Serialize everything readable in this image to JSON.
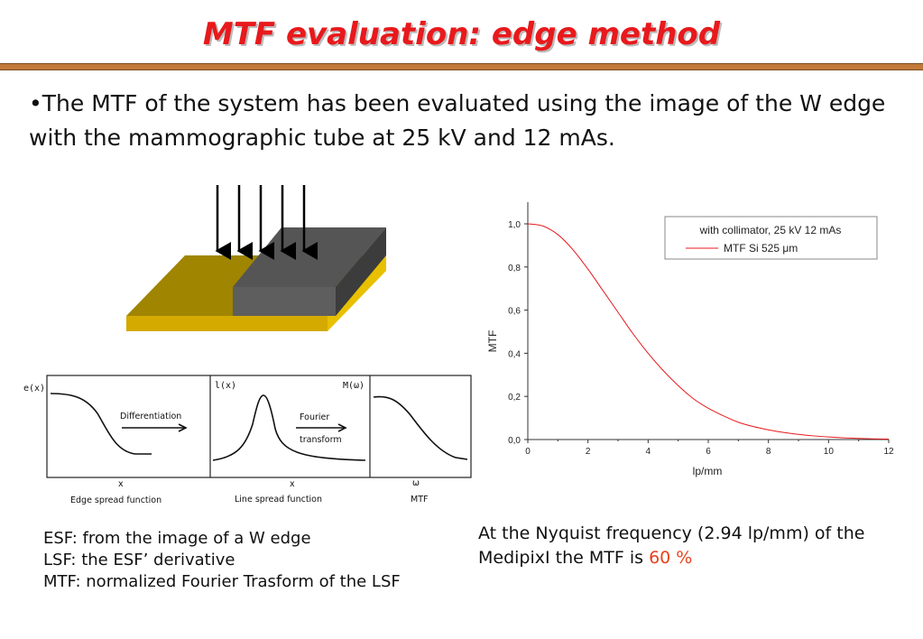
{
  "title": "MTF evaluation: edge method",
  "bullet": "•The MTF of the system has been evaluated using the image of the W edge with the mammographic tube at 25 kV and 12 mAs.",
  "schematic": {
    "labels": {
      "ex": "e(x)",
      "lx": "l(x)",
      "mw": "M(ω)",
      "differentiation": "Differentiation",
      "fourier": "Fourier",
      "transform": "transform",
      "x1": "x",
      "x2": "x",
      "w": "ω",
      "esf": "Edge spread function",
      "lsf": "Line spread function",
      "mtf": "MTF"
    }
  },
  "notes": {
    "line1": "ESF: from the image of a W edge",
    "line2": "LSF: the ESF’ derivative",
    "line3": "MTF: normalized Fourier Trasform of the LSF"
  },
  "nyquist": {
    "text": "At the Nyquist frequency (2.94 lp/mm) of the MedipixI the MTF is",
    "value": "60 %"
  },
  "chart_data": {
    "type": "line",
    "title": "",
    "xlabel": "lp/mm",
    "ylabel": "MTF",
    "xlim": [
      0,
      12
    ],
    "ylim": [
      0,
      1.1
    ],
    "x_ticks": [
      "0",
      "2",
      "4",
      "6",
      "8",
      "10",
      "12"
    ],
    "y_ticks": [
      "0,0",
      "0,2",
      "0,4",
      "0,6",
      "0,8",
      "1,0"
    ],
    "legend_title": "with collimator, 25 kV 12 mAs",
    "legend_position": "top-right",
    "series": [
      {
        "name": "MTF Si 525 μm",
        "color": "#e8191c",
        "x": [
          0,
          0.5,
          1,
          1.5,
          2,
          2.5,
          3,
          3.5,
          4,
          4.5,
          5,
          5.5,
          6,
          6.5,
          7,
          7.5,
          8,
          8.5,
          9,
          9.5,
          10,
          10.5,
          11,
          11.5,
          12
        ],
        "y": [
          1.0,
          0.99,
          0.95,
          0.88,
          0.79,
          0.69,
          0.59,
          0.49,
          0.4,
          0.32,
          0.25,
          0.19,
          0.145,
          0.11,
          0.08,
          0.06,
          0.045,
          0.033,
          0.024,
          0.017,
          0.012,
          0.008,
          0.005,
          0.003,
          0.002
        ]
      }
    ]
  }
}
